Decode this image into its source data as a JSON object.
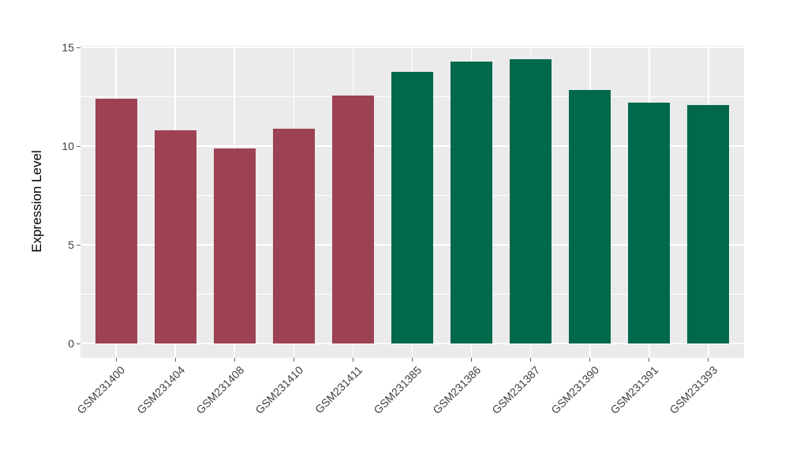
{
  "chart_data": {
    "type": "bar",
    "title": "",
    "xlabel": "",
    "ylabel": "Expression Level",
    "categories": [
      "GSM231400",
      "GSM231404",
      "GSM231408",
      "GSM231410",
      "GSM231411",
      "GSM231385",
      "GSM231386",
      "GSM231387",
      "GSM231390",
      "GSM231391",
      "GSM231393"
    ],
    "values": [
      12.4,
      10.8,
      9.9,
      10.9,
      12.55,
      13.75,
      14.3,
      14.4,
      12.85,
      12.2,
      12.1
    ],
    "bar_colors": [
      "#9C4253",
      "#9C4253",
      "#9C4253",
      "#9C4253",
      "#9C4253",
      "#00684B",
      "#00684B",
      "#00684B",
      "#00684B",
      "#00684B",
      "#00684B"
    ],
    "y_ticks": [
      0,
      5,
      10,
      15
    ],
    "y_minor_ticks": [
      2.5,
      7.5,
      12.5
    ],
    "ylim": [
      0,
      15
    ],
    "grid": true,
    "legend_position": "none",
    "colors": {
      "group_left": "#9C4253",
      "group_right": "#00684B",
      "panel_background": "#EBEBEB",
      "gridline": "#FFFFFF",
      "tick_label": "#404040",
      "axis_title": "#000000",
      "tick_mark": "#666666",
      "page_background": "#FFFFFF"
    }
  }
}
